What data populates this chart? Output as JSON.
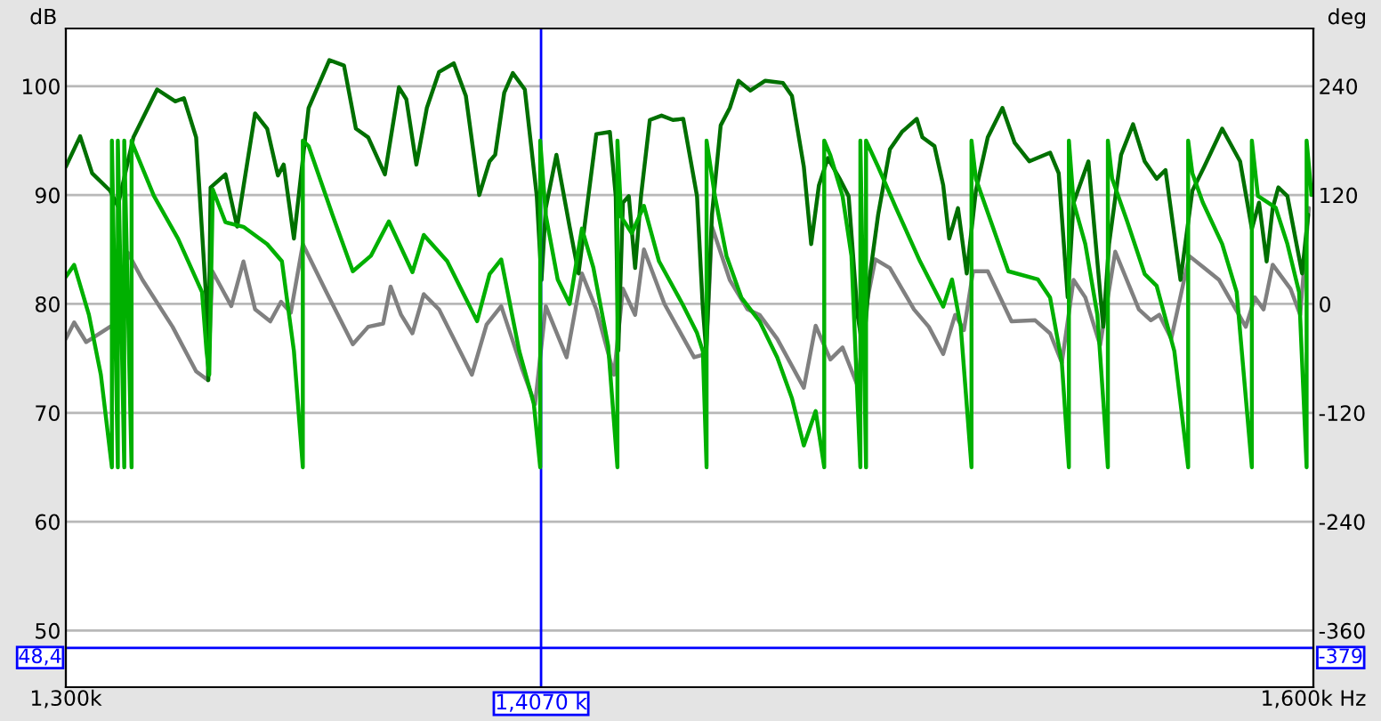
{
  "chart_data": {
    "type": "line",
    "ylabel": "dB",
    "y2label": "deg",
    "log": "x",
    "grid": "y",
    "marker": "none",
    "line_style": "solid",
    "xlim": [
      1300,
      1600
    ],
    "xticks": [
      {
        "value": 1300,
        "label": "1,300k"
      },
      {
        "value": 1600,
        "label": "1,600k Hz"
      }
    ],
    "ylim": [
      44.8,
      105.3
    ],
    "yticks": [
      50,
      60,
      70,
      80,
      90,
      100
    ],
    "y2lim": [
      -422.4,
      303.6
    ],
    "y2ticks": [
      -360,
      -240,
      -120,
      0,
      120,
      240
    ],
    "ref_lines": [
      {
        "axis": "x",
        "value": 1407.0,
        "label": "1,4070 k",
        "color": "#0000ff"
      },
      {
        "axis": "y",
        "value": 48.4,
        "label": "48,4",
        "color": "#0000ff"
      }
    ],
    "annotations": [
      {
        "text": "-379",
        "x": 1600,
        "y": 48.4
      }
    ],
    "series": [
      {
        "color": "#808080",
        "x": [
          1300.0,
          1301.8,
          1304.4,
          1309.6,
          1311.3,
          1313.5,
          1316.7,
          1323.3,
          1328.5,
          1331.1,
          1332.1,
          1336.3,
          1339.0,
          1341.6,
          1345.0,
          1347.4,
          1349.6,
          1352.3,
          1357.6,
          1363.6,
          1367.1,
          1370.5,
          1372.2,
          1374.6,
          1377.2,
          1379.8,
          1383.3,
          1390.9,
          1394.3,
          1397.7,
          1402.5,
          1405.6,
          1408.1,
          1413.0,
          1416.6,
          1420.0,
          1424.2,
          1426.3,
          1429.2,
          1431.3,
          1436.2,
          1443.3,
          1446.2,
          1447.6,
          1451.9,
          1456.2,
          1459.1,
          1463.4,
          1469.9,
          1472.8,
          1476.4,
          1479.4,
          1483.1,
          1485.3,
          1487.5,
          1491.1,
          1497.1,
          1500.8,
          1504.4,
          1507.4,
          1509.6,
          1511.9,
          1515.6,
          1521.6,
          1527.6,
          1531.4,
          1534.4,
          1537.4,
          1540.4,
          1544.2,
          1548.1,
          1554.2,
          1557.3,
          1559.5,
          1562.6,
          1567.3,
          1571.2,
          1575.1,
          1582.1,
          1584.5,
          1586.8,
          1589.2,
          1593.9,
          1596.5,
          1598.8
        ],
        "values": [
          76.8,
          78.3,
          76.5,
          77.9,
          78.2,
          84.7,
          82.2,
          77.9,
          73.8,
          73.0,
          83.0,
          79.8,
          83.9,
          79.5,
          78.4,
          80.2,
          79.2,
          85.5,
          81.1,
          76.3,
          77.9,
          78.2,
          81.6,
          79.0,
          77.3,
          80.9,
          79.5,
          73.5,
          78.1,
          79.8,
          74.1,
          70.8,
          79.8,
          75.1,
          82.8,
          79.5,
          73.5,
          81.4,
          79.0,
          85.0,
          80.0,
          75.1,
          75.4,
          87.1,
          82.2,
          79.5,
          79.0,
          76.8,
          72.3,
          78.0,
          74.9,
          76.0,
          72.5,
          80.0,
          84.1,
          83.3,
          79.5,
          77.9,
          75.4,
          79.0,
          77.6,
          83.0,
          83.0,
          78.4,
          78.5,
          77.3,
          74.6,
          82.2,
          80.6,
          76.2,
          84.8,
          79.5,
          78.5,
          79.0,
          76.8,
          84.4,
          83.3,
          82.2,
          77.9,
          80.6,
          79.5,
          83.6,
          81.4,
          79.0,
          88.8
        ]
      },
      {
        "color": "#00b000",
        "axis": "y2",
        "x": [
          1300.0,
          1301.8,
          1305.0,
          1307.6,
          1310.0,
          1310.0,
          1311.3,
          1311.3,
          1312.7,
          1312.7,
          1314.3,
          1314.3,
          1314.7,
          1319.2,
          1324.5,
          1329.8,
          1330.8,
          1331.4,
          1332.2,
          1335.0,
          1339.0,
          1344.3,
          1347.6,
          1350.3,
          1352.3,
          1352.3,
          1353.6,
          1359.0,
          1363.6,
          1367.7,
          1371.8,
          1377.2,
          1379.8,
          1385.2,
          1392.1,
          1395.0,
          1397.7,
          1401.9,
          1405.3,
          1406.8,
          1406.8,
          1408.1,
          1410.9,
          1413.7,
          1416.6,
          1419.3,
          1422.8,
          1425.0,
          1425.0,
          1425.9,
          1428.4,
          1431.3,
          1434.9,
          1440.5,
          1444.0,
          1445.4,
          1446.3,
          1446.3,
          1448.3,
          1451.1,
          1454.7,
          1459.1,
          1463.4,
          1467.0,
          1469.9,
          1472.8,
          1474.9,
          1474.9,
          1476.4,
          1479.4,
          1481.6,
          1483.8,
          1483.8,
          1485.2,
          1485.2,
          1488.2,
          1492.6,
          1498.6,
          1504.4,
          1506.6,
          1508.8,
          1511.5,
          1511.5,
          1512.6,
          1516.3,
          1520.8,
          1528.3,
          1531.4,
          1534.4,
          1536.2,
          1536.2,
          1537.4,
          1540.4,
          1543.5,
          1546.2,
          1546.2,
          1547.3,
          1551.1,
          1555.7,
          1558.8,
          1563.4,
          1567.0,
          1567.0,
          1568.1,
          1570.8,
          1575.9,
          1579.7,
          1583.7,
          1583.7,
          1585.3,
          1590.0,
          1593.1,
          1596.2,
          1598.2,
          1598.2,
          1599.5
        ],
        "values": [
          30,
          43,
          -12,
          -78,
          -180,
          180,
          -180,
          180,
          -180,
          180,
          -180,
          180,
          174,
          119,
          72,
          13,
          -52,
          -78,
          126,
          90,
          85,
          66,
          47,
          -52,
          -180,
          180,
          174,
          98,
          36,
          53,
          91,
          35,
          76,
          47,
          -19,
          33,
          49,
          -52,
          -110,
          -180,
          180,
          98,
          27,
          0,
          83,
          40,
          -46,
          -180,
          180,
          96,
          78,
          108,
          47,
          0,
          -32,
          -52,
          -180,
          180,
          119,
          53,
          7,
          -19,
          -59,
          -104,
          -156,
          -118,
          -180,
          180,
          164,
          119,
          53,
          -180,
          180,
          -180,
          180,
          151,
          106,
          47,
          -3,
          27,
          -25,
          -180,
          180,
          138,
          92,
          36,
          27,
          7,
          -65,
          -180,
          180,
          112,
          66,
          -12,
          -180,
          180,
          138,
          92,
          33,
          20,
          -52,
          -180,
          180,
          144,
          112,
          66,
          13,
          -180,
          180,
          119,
          106,
          66,
          13,
          -180,
          180,
          120
        ]
      },
      {
        "color": "#007000",
        "x": [
          1300.0,
          1303.1,
          1305.7,
          1309.6,
          1311.3,
          1314.7,
          1319.9,
          1323.9,
          1325.8,
          1328.5,
          1330.8,
          1331.2,
          1331.7,
          1335.0,
          1337.6,
          1341.6,
          1344.3,
          1346.7,
          1348.0,
          1350.3,
          1353.6,
          1358.3,
          1361.6,
          1364.3,
          1367.1,
          1370.9,
          1374.1,
          1375.8,
          1378.1,
          1380.5,
          1383.3,
          1386.7,
          1389.5,
          1392.6,
          1395.0,
          1396.3,
          1398.4,
          1400.4,
          1403.2,
          1406.0,
          1407.1,
          1408.1,
          1410.6,
          1413.7,
          1415.8,
          1420.0,
          1423.2,
          1424.6,
          1425.2,
          1426.3,
          1427.7,
          1429.2,
          1430.6,
          1432.7,
          1435.5,
          1438.2,
          1440.7,
          1444.0,
          1445.4,
          1446.2,
          1447.6,
          1449.7,
          1451.9,
          1454.0,
          1456.9,
          1460.5,
          1464.8,
          1467.0,
          1469.9,
          1471.7,
          1473.6,
          1475.8,
          1478.7,
          1480.9,
          1483.1,
          1484.5,
          1486.0,
          1488.2,
          1491.1,
          1494.1,
          1497.8,
          1499.2,
          1502.2,
          1504.4,
          1505.9,
          1508.1,
          1510.3,
          1512.6,
          1515.6,
          1519.3,
          1522.4,
          1526.1,
          1531.4,
          1533.6,
          1535.9,
          1537.4,
          1541.2,
          1545.0,
          1546.5,
          1549.6,
          1552.7,
          1555.7,
          1558.8,
          1561.1,
          1565.0,
          1568.1,
          1571.2,
          1575.9,
          1580.6,
          1583.7,
          1585.6,
          1587.6,
          1589.2,
          1590.7,
          1593.1,
          1597.0,
          1598.6
        ],
        "values": [
          92.6,
          95.4,
          92.0,
          90.4,
          89.0,
          95.3,
          99.7,
          98.6,
          98.9,
          95.3,
          80.0,
          73.0,
          90.7,
          91.9,
          87.1,
          97.5,
          96.1,
          91.8,
          92.8,
          86.0,
          98.0,
          102.4,
          101.9,
          96.1,
          95.3,
          91.9,
          99.9,
          98.8,
          92.8,
          98.0,
          101.3,
          102.1,
          99.1,
          90.0,
          93.1,
          93.7,
          99.4,
          101.2,
          99.7,
          89.9,
          82.2,
          88.8,
          93.7,
          87.1,
          82.8,
          95.6,
          95.8,
          89.9,
          75.7,
          89.3,
          89.9,
          83.3,
          89.9,
          96.9,
          97.3,
          96.9,
          97.0,
          89.9,
          79.6,
          75.7,
          88.2,
          96.4,
          98.0,
          100.5,
          99.6,
          100.5,
          100.3,
          99.1,
          92.6,
          85.5,
          90.9,
          93.4,
          91.5,
          89.9,
          79.0,
          75.7,
          82.2,
          88.2,
          94.2,
          95.8,
          97.0,
          95.3,
          94.5,
          90.9,
          86.0,
          88.8,
          82.8,
          90.4,
          95.3,
          98.0,
          94.8,
          93.1,
          93.9,
          92.0,
          80.6,
          89.3,
          93.1,
          77.9,
          85.5,
          93.7,
          96.5,
          93.1,
          91.5,
          92.3,
          82.2,
          90.4,
          92.6,
          96.1,
          93.1,
          86.9,
          89.3,
          83.9,
          88.8,
          90.7,
          89.9,
          82.8,
          88.2
        ]
      }
    ]
  }
}
